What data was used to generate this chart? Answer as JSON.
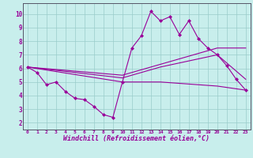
{
  "bg_color": "#c8eeec",
  "line_color": "#990099",
  "grid_color": "#99ccca",
  "xlabel": "Windchill (Refroidissement éolien,°C)",
  "ylim": [
    1.5,
    10.8
  ],
  "xlim": [
    -0.5,
    23.5
  ],
  "yticks": [
    2,
    3,
    4,
    5,
    6,
    7,
    8,
    9,
    10
  ],
  "xticks": [
    0,
    1,
    2,
    3,
    4,
    5,
    6,
    7,
    8,
    9,
    10,
    11,
    12,
    13,
    14,
    15,
    16,
    17,
    18,
    19,
    20,
    21,
    22,
    23
  ],
  "main_x": [
    0,
    1,
    2,
    3,
    4,
    5,
    6,
    7,
    8,
    9,
    10,
    11,
    12,
    13,
    14,
    15,
    16,
    17,
    18,
    19,
    20,
    21,
    22,
    23
  ],
  "main_y": [
    6.1,
    5.7,
    4.8,
    5.0,
    4.3,
    3.8,
    3.7,
    3.2,
    2.6,
    2.4,
    5.0,
    7.5,
    8.4,
    10.2,
    9.5,
    9.8,
    8.5,
    9.5,
    8.2,
    7.5,
    7.0,
    6.2,
    5.2,
    4.4
  ],
  "trend1_x": [
    0,
    10,
    14,
    20,
    23
  ],
  "trend1_y": [
    6.1,
    5.3,
    6.1,
    7.0,
    5.2
  ],
  "trend2_x": [
    0,
    10,
    14,
    20,
    23
  ],
  "trend2_y": [
    6.1,
    5.5,
    6.3,
    7.5,
    7.5
  ],
  "trend3_x": [
    0,
    10,
    14,
    20,
    23
  ],
  "trend3_y": [
    6.1,
    5.0,
    5.0,
    4.7,
    4.4
  ]
}
